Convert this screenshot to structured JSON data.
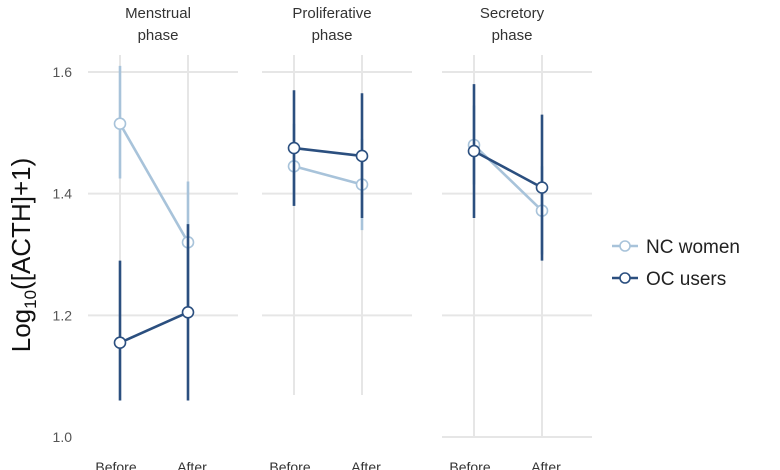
{
  "chart_data": {
    "type": "line",
    "ylabel": "Log10([ACTH]+1)",
    "ylim": [
      1.0,
      1.6
    ],
    "y_ticks": [
      1.0,
      1.2,
      1.4,
      1.6
    ],
    "y_tick_labels": [
      "1.0",
      "1.2",
      "1.4",
      "1.6"
    ],
    "grid": true,
    "error_bars": true,
    "legend_position": "right",
    "colors": {
      "NC women": "#a8c3da",
      "OC users": "#2b4f7f",
      "grid": "#e6e6e6"
    },
    "categories": [
      "Before",
      "After"
    ],
    "panels": [
      {
        "title_lines": [
          "Menstrual",
          "phase"
        ],
        "series": [
          {
            "name": "NC women",
            "values": [
              1.515,
              1.32
            ],
            "lower": [
              1.425,
              1.215
            ],
            "upper": [
              1.61,
              1.42
            ]
          },
          {
            "name": "OC users",
            "values": [
              1.155,
              1.205
            ],
            "lower": [
              1.06,
              1.06
            ],
            "upper": [
              1.29,
              1.35
            ]
          }
        ]
      },
      {
        "title_lines": [
          "Proliferative",
          "phase"
        ],
        "series": [
          {
            "name": "NC women",
            "values": [
              1.445,
              1.415
            ],
            "lower": [
              1.38,
              1.34
            ],
            "upper": [
              1.515,
              1.49
            ]
          },
          {
            "name": "OC users",
            "values": [
              1.475,
              1.462
            ],
            "lower": [
              1.38,
              1.36
            ],
            "upper": [
              1.57,
              1.565
            ]
          }
        ]
      },
      {
        "title_lines": [
          "Secretory",
          "phase"
        ],
        "series": [
          {
            "name": "NC women",
            "values": [
              1.48,
              1.372
            ],
            "lower": [
              1.415,
              1.3
            ],
            "upper": [
              1.545,
              1.445
            ]
          },
          {
            "name": "OC users",
            "values": [
              1.47,
              1.41
            ],
            "lower": [
              1.36,
              1.29
            ],
            "upper": [
              1.58,
              1.53
            ]
          }
        ]
      }
    ],
    "legend": [
      "NC women",
      "OC users"
    ]
  }
}
